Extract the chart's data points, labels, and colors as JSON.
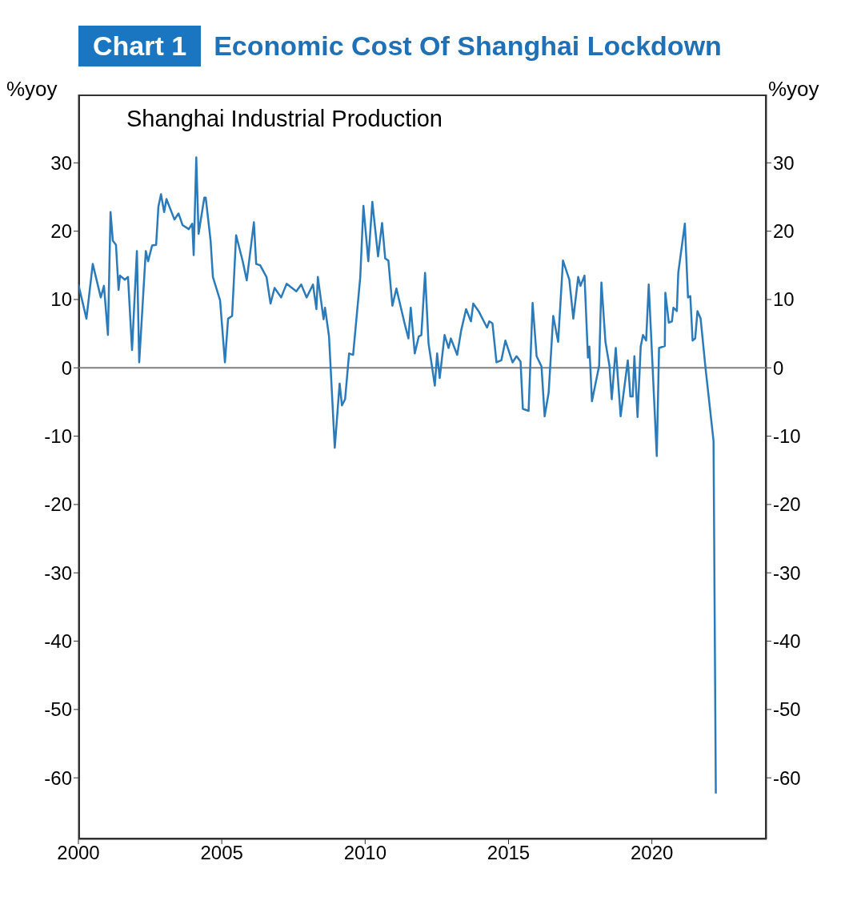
{
  "chart_data": {
    "type": "line",
    "title": "Economic Cost Of Shanghai Lockdown",
    "subtitle": "Shanghai Industrial Production",
    "annotations": [
      "Chart 1"
    ],
    "ylabel": "%yoy",
    "y2label": "%yoy",
    "color": "#2b7bba",
    "x": [
      2000.0,
      2000.28,
      2000.5,
      2000.78,
      2000.89,
      2001.03,
      2001.12,
      2001.2,
      2001.31,
      2001.4,
      2001.45,
      2001.62,
      2001.73,
      2001.87,
      2002.04,
      2002.12,
      2002.35,
      2002.43,
      2002.57,
      2002.71,
      2002.79,
      2002.88,
      2002.99,
      2003.07,
      2003.35,
      2003.49,
      2003.63,
      2003.85,
      2003.97,
      2004.02,
      2004.11,
      2004.19,
      2004.39,
      2004.44,
      2004.61,
      2004.69,
      2004.94,
      2005.11,
      2005.22,
      2005.36,
      2005.5,
      2005.73,
      2005.87,
      2006.12,
      2006.2,
      2006.34,
      2006.56,
      2006.7,
      2006.84,
      2007.07,
      2007.26,
      2007.6,
      2007.77,
      2007.96,
      2008.18,
      2008.3,
      2008.35,
      2008.55,
      2008.6,
      2008.74,
      2008.94,
      2009.11,
      2009.19,
      2009.3,
      2009.44,
      2009.58,
      2009.83,
      2009.94,
      2010.11,
      2010.25,
      2010.45,
      2010.59,
      2010.7,
      2010.81,
      2010.95,
      2011.09,
      2011.37,
      2011.51,
      2011.59,
      2011.73,
      2011.87,
      2011.96,
      2012.09,
      2012.21,
      2012.43,
      2012.51,
      2012.6,
      2012.77,
      2012.91,
      2012.99,
      2013.21,
      2013.35,
      2013.52,
      2013.69,
      2013.77,
      2013.97,
      2014.25,
      2014.33,
      2014.44,
      2014.58,
      2014.75,
      2014.89,
      2015.14,
      2015.28,
      2015.42,
      2015.5,
      2015.7,
      2015.84,
      2015.98,
      2016.15,
      2016.26,
      2016.4,
      2016.56,
      2016.73,
      2016.9,
      2017.12,
      2017.26,
      2017.43,
      2017.51,
      2017.65,
      2017.77,
      2017.82,
      2017.91,
      2018.16,
      2018.24,
      2018.38,
      2018.52,
      2018.6,
      2018.74,
      2018.91,
      2019.16,
      2019.25,
      2019.33,
      2019.39,
      2019.5,
      2019.61,
      2019.69,
      2019.8,
      2019.89,
      2020.17,
      2020.25,
      2020.45,
      2020.47,
      2020.59,
      2020.7,
      2020.75,
      2020.87,
      2020.92,
      2021.15,
      2021.26,
      2021.34,
      2021.42,
      2021.51,
      2021.59,
      2021.7,
      2021.87,
      2022.15,
      2022.23
    ],
    "values": [
      12.2,
      7.2,
      15.2,
      10.3,
      12.0,
      4.8,
      22.8,
      18.6,
      18.0,
      11.4,
      13.5,
      12.9,
      13.3,
      2.6,
      17.1,
      0.8,
      17.1,
      15.6,
      17.9,
      18.0,
      23.6,
      25.4,
      22.8,
      24.7,
      21.7,
      22.6,
      20.9,
      20.3,
      21.1,
      16.5,
      30.8,
      19.6,
      24.9,
      24.9,
      18.6,
      13.3,
      9.9,
      0.8,
      7.2,
      7.6,
      19.4,
      15.6,
      12.8,
      21.3,
      15.2,
      15.0,
      13.3,
      9.4,
      11.7,
      10.3,
      12.3,
      11.2,
      12.2,
      10.3,
      12.2,
      8.6,
      13.3,
      7.1,
      8.8,
      4.6,
      -11.7,
      -2.3,
      -5.5,
      -4.6,
      2.1,
      1.9,
      13.3,
      23.7,
      15.6,
      24.3,
      16.3,
      21.2,
      16.0,
      15.7,
      9.1,
      11.6,
      6.6,
      4.3,
      8.8,
      2.1,
      4.6,
      4.8,
      13.9,
      3.6,
      -2.6,
      2.1,
      -1.5,
      4.8,
      2.9,
      4.3,
      1.9,
      5.5,
      8.6,
      6.8,
      9.4,
      8.2,
      5.9,
      6.8,
      6.5,
      0.8,
      1.1,
      4.0,
      0.8,
      1.7,
      0.9,
      -6.0,
      -6.3,
      9.5,
      1.7,
      0.2,
      -7.1,
      -3.6,
      7.6,
      3.8,
      15.7,
      12.9,
      7.2,
      13.3,
      12.0,
      13.5,
      1.5,
      3.1,
      -4.9,
      0.3,
      12.5,
      3.8,
      0.3,
      -4.6,
      2.9,
      -7.1,
      1.1,
      -4.2,
      -4.2,
      1.7,
      -7.2,
      3.1,
      4.8,
      4.0,
      12.2,
      -12.9,
      2.9,
      3.2,
      11.0,
      6.6,
      6.8,
      8.8,
      8.3,
      13.9,
      21.1,
      10.3,
      10.5,
      4.0,
      4.3,
      8.3,
      7.2,
      0.0,
      -10.7,
      -62.3
    ],
    "xlim": [
      2000,
      2024
    ],
    "xticks": [
      2000,
      2005,
      2010,
      2015,
      2020
    ],
    "ylim": [
      -69,
      40
    ],
    "yticks": [
      -60,
      -50,
      -40,
      -30,
      -20,
      -10,
      0,
      10,
      20,
      30
    ],
    "y2lim": [
      -69,
      40
    ],
    "y2ticks": [
      -60,
      -50,
      -40,
      -30,
      -20,
      -10,
      0,
      10,
      20,
      30
    ],
    "ref_lines": [
      {
        "axis": "y",
        "value": 0,
        "color": "#808080"
      }
    ]
  }
}
